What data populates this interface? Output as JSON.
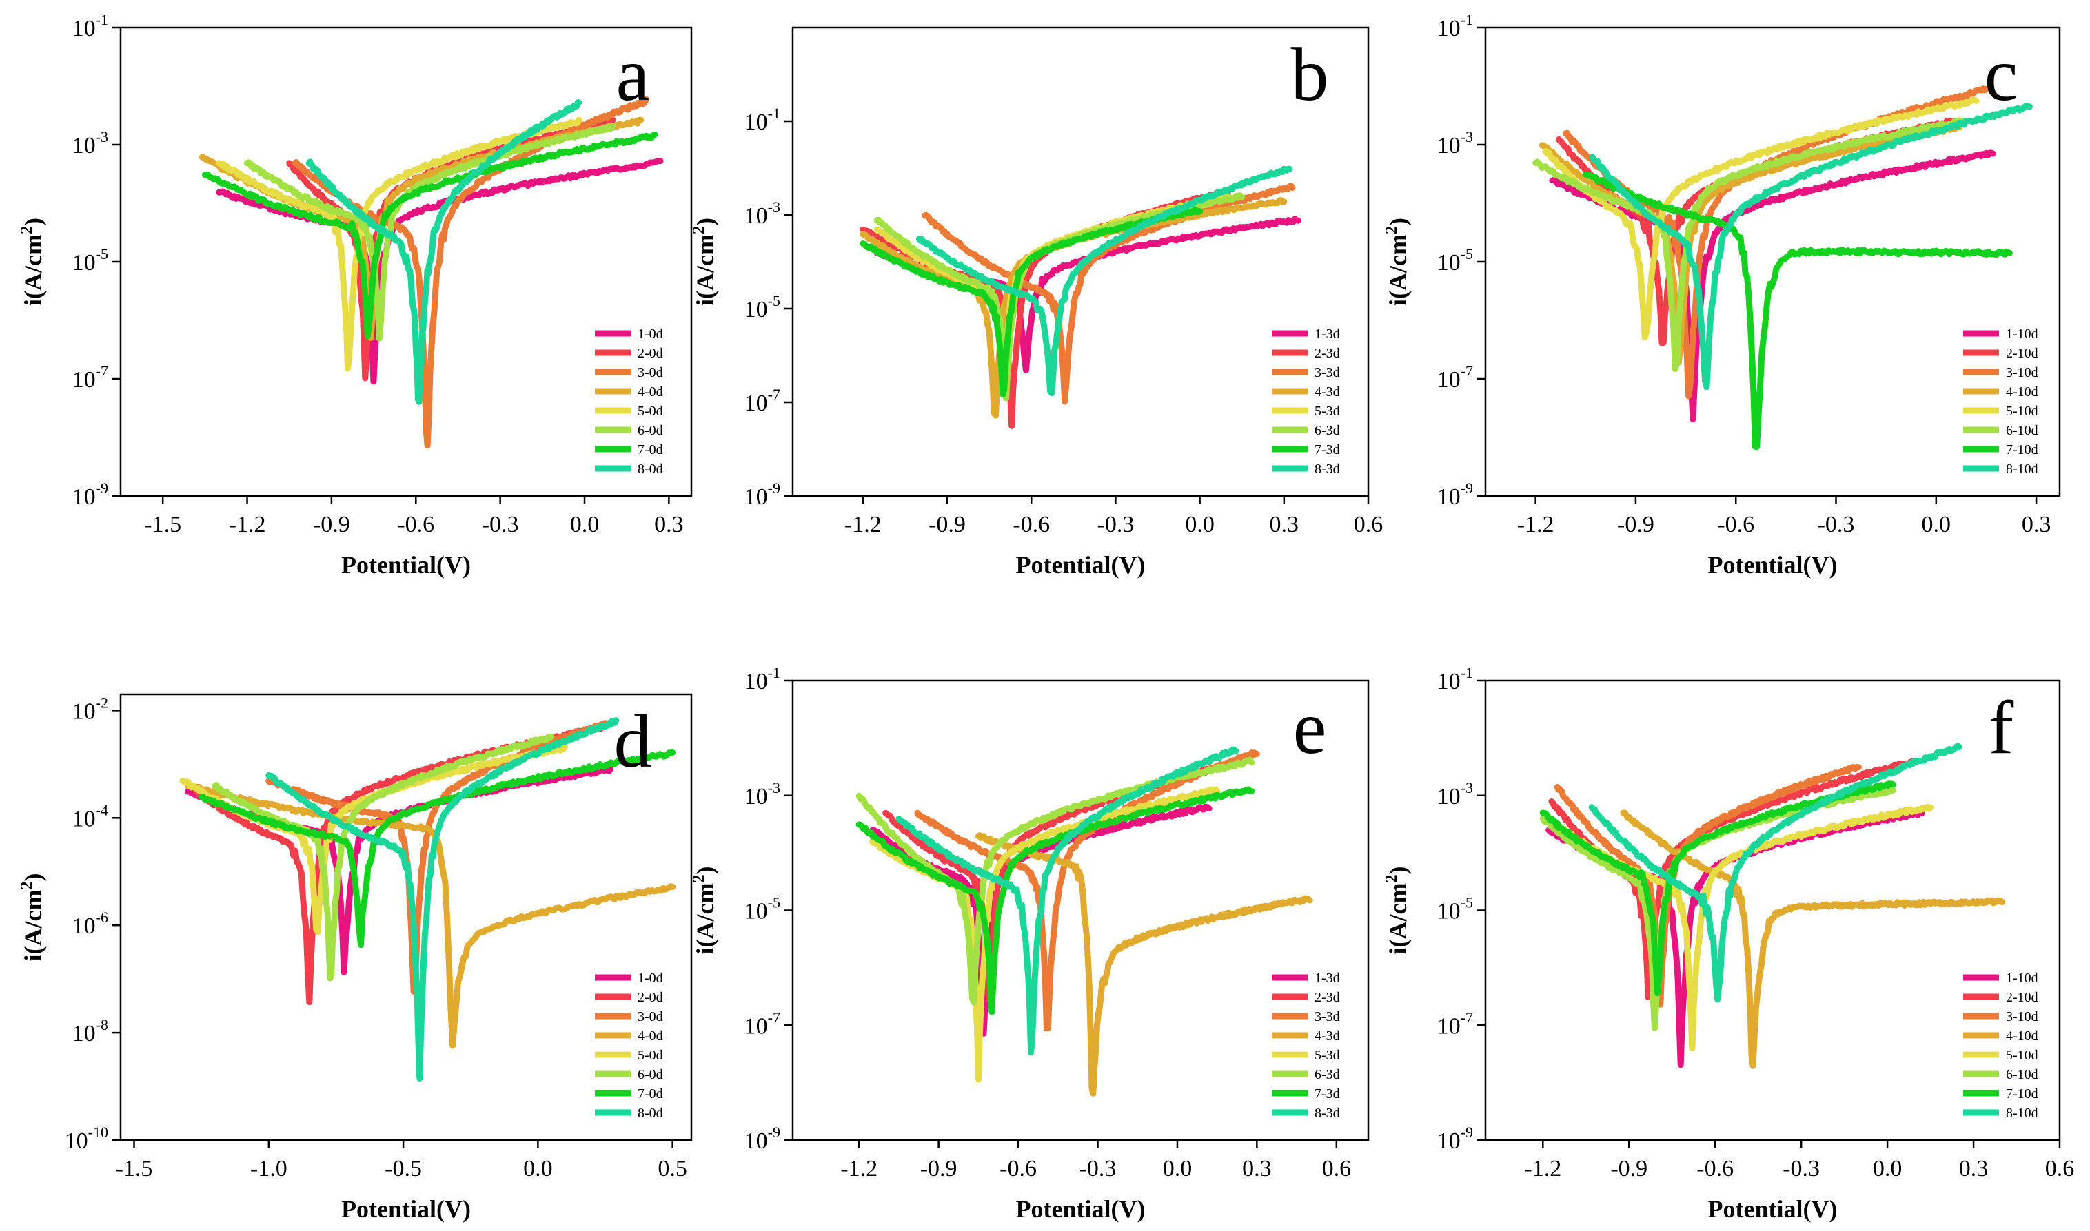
{
  "series_colors": [
    "#e8137f",
    "#f23d4b",
    "#ea7a35",
    "#e0aa2f",
    "#e6dc45",
    "#a3e044",
    "#13d11f",
    "#1ad69a"
  ],
  "chart_data": [
    {
      "type": "line",
      "panel": "a",
      "xlabel": "Potential(V)",
      "ylabel": "i(A/cm2)",
      "ylabel_base": "i(A/cm",
      "ylabel_sup": "2",
      "ylabel_end": ")",
      "xlim": [
        -1.65,
        0.38
      ],
      "ylim_exp": [
        -9,
        -1
      ],
      "x_ticks": [
        -1.5,
        -1.2,
        -0.9,
        -0.6,
        -0.3,
        0.0,
        0.3
      ],
      "x_tick_labels": [
        "-1.5",
        "-1.2",
        "-0.9",
        "-0.6",
        "-0.3",
        "0.0",
        "0.3"
      ],
      "y_tick_exps": [
        -9,
        -7,
        -5,
        -3,
        -1
      ],
      "y_tick_exp_labels": [
        "-9",
        "-7",
        "-5",
        "-3",
        "-1"
      ],
      "series": [
        {
          "name": "1-0d",
          "ecorr": -0.75,
          "ecorr_exp": -7.0,
          "start": -1.3,
          "start_exp": -3.8,
          "end": 0.27,
          "end_exp": -3.3,
          "cath_knee_exp": -4.4,
          "anod_knee_exp": -4.6
        },
        {
          "name": "2-0d",
          "ecorr": -0.78,
          "ecorr_exp": -7.0,
          "start": -1.05,
          "start_exp": -3.3,
          "end": 0.1,
          "end_exp": -2.6,
          "cath_knee_exp": -4.3,
          "anod_knee_exp": -4.3
        },
        {
          "name": "3-0d",
          "ecorr": -0.56,
          "ecorr_exp": -8.5,
          "start": -1.03,
          "start_exp": -3.3,
          "end": 0.22,
          "end_exp": -2.25,
          "cath_knee_exp": -4.5,
          "anod_knee_exp": -4.8
        },
        {
          "name": "4-0d",
          "ecorr": -0.76,
          "ecorr_exp": -6.3,
          "start": -1.36,
          "start_exp": -3.2,
          "end": 0.2,
          "end_exp": -2.6,
          "cath_knee_exp": -4.3,
          "anod_knee_exp": -4.2
        },
        {
          "name": "5-0d",
          "ecorr": -0.84,
          "ecorr_exp": -7.1,
          "start": -1.3,
          "start_exp": -3.3,
          "end": -0.02,
          "end_exp": -2.6,
          "cath_knee_exp": -4.2,
          "anod_knee_exp": -4.3
        },
        {
          "name": "6-0d",
          "ecorr": -0.73,
          "ecorr_exp": -6.4,
          "start": -1.2,
          "start_exp": -3.3,
          "end": 0.1,
          "end_exp": -2.7,
          "cath_knee_exp": -4.3,
          "anod_knee_exp": -4.3
        },
        {
          "name": "7-0d",
          "ecorr": -0.77,
          "ecorr_exp": -6.5,
          "start": -1.35,
          "start_exp": -3.5,
          "end": 0.25,
          "end_exp": -2.85,
          "cath_knee_exp": -4.4,
          "anod_knee_exp": -4.4
        },
        {
          "name": "8-0d",
          "ecorr": -0.59,
          "ecorr_exp": -7.7,
          "start": -0.98,
          "start_exp": -3.3,
          "end": -0.02,
          "end_exp": -2.3,
          "cath_knee_exp": -4.7,
          "anod_knee_exp": -5.0
        }
      ]
    },
    {
      "type": "line",
      "panel": "b",
      "xlabel": "Potential(V)",
      "ylabel": "i(A/cm2)",
      "ylabel_base": "i(A/cm",
      "ylabel_sup": "2",
      "ylabel_end": ")",
      "xlim": [
        -1.45,
        0.6
      ],
      "ylim_exp": [
        -9,
        1
      ],
      "x_ticks": [
        -1.2,
        -0.9,
        -0.6,
        -0.3,
        0.0,
        0.3,
        0.6
      ],
      "x_tick_labels": [
        "-1.2",
        "-0.9",
        "-0.6",
        "-0.3",
        "0.0",
        "0.3",
        "0.6"
      ],
      "y_tick_exps": [
        -9,
        -7,
        -5,
        -3,
        -1
      ],
      "y_tick_exp_labels": [
        "-9",
        "-7",
        "-5",
        "-3",
        "-1"
      ],
      "series": [
        {
          "name": "1-3d",
          "ecorr": -0.62,
          "ecorr_exp": -6.5,
          "start": -1.15,
          "start_exp": -3.8,
          "end": 0.35,
          "end_exp": -3.1,
          "cath_knee_exp": -4.5,
          "anod_knee_exp": -4.6
        },
        {
          "name": "2-3d",
          "ecorr": -0.67,
          "ecorr_exp": -7.5,
          "start": -1.2,
          "start_exp": -3.3,
          "end": 0.1,
          "end_exp": -2.5,
          "cath_knee_exp": -4.5,
          "anod_knee_exp": -4.5
        },
        {
          "name": "3-3d",
          "ecorr": -0.48,
          "ecorr_exp": -7.1,
          "start": -0.98,
          "start_exp": -3.0,
          "end": 0.33,
          "end_exp": -2.4,
          "cath_knee_exp": -4.7,
          "anod_knee_exp": -4.6
        },
        {
          "name": "4-3d",
          "ecorr": -0.73,
          "ecorr_exp": -7.6,
          "start": -1.2,
          "start_exp": -3.4,
          "end": 0.3,
          "end_exp": -2.7,
          "cath_knee_exp": -4.6,
          "anod_knee_exp": -4.4
        },
        {
          "name": "5-3d",
          "ecorr": -0.7,
          "ecorr_exp": -6.6,
          "start": -1.15,
          "start_exp": -3.3,
          "end": 0.1,
          "end_exp": -2.6,
          "cath_knee_exp": -4.6,
          "anod_knee_exp": -4.4
        },
        {
          "name": "6-3d",
          "ecorr": -0.69,
          "ecorr_exp": -6.9,
          "start": -1.15,
          "start_exp": -3.1,
          "end": 0.15,
          "end_exp": -2.6,
          "cath_knee_exp": -4.6,
          "anod_knee_exp": -4.4
        },
        {
          "name": "7-3d",
          "ecorr": -0.7,
          "ecorr_exp": -7.0,
          "start": -1.2,
          "start_exp": -3.6,
          "end": 0.0,
          "end_exp": -2.9,
          "cath_knee_exp": -4.7,
          "anod_knee_exp": -4.4
        },
        {
          "name": "8-3d",
          "ecorr": -0.53,
          "ecorr_exp": -7.1,
          "start": -1.0,
          "start_exp": -3.5,
          "end": 0.32,
          "end_exp": -2.0,
          "cath_knee_exp": -4.8,
          "anod_knee_exp": -5.0
        }
      ]
    },
    {
      "type": "line",
      "panel": "c",
      "xlabel": "Potential(V)",
      "ylabel": "i(A/cm2)",
      "ylabel_base": "i(A/cm",
      "ylabel_sup": "2",
      "ylabel_end": ")",
      "xlim": [
        -1.35,
        0.37
      ],
      "ylim_exp": [
        -9,
        -1
      ],
      "x_ticks": [
        -1.2,
        -0.9,
        -0.6,
        -0.3,
        0.0,
        0.3
      ],
      "x_tick_labels": [
        "-1.2",
        "-0.9",
        "-0.6",
        "-0.3",
        "0.0",
        "0.3"
      ],
      "y_tick_exps": [
        -9,
        -7,
        -5,
        -3,
        -1
      ],
      "y_tick_exp_labels": [
        "-9",
        "-7",
        "-5",
        "-3",
        "-1"
      ],
      "series": [
        {
          "name": "1-10d",
          "ecorr": -0.73,
          "ecorr_exp": -7.8,
          "start": -1.15,
          "start_exp": -3.6,
          "end": 0.17,
          "end_exp": -3.15,
          "cath_knee_exp": -4.4,
          "anod_knee_exp": -4.7
        },
        {
          "name": "2-10d",
          "ecorr": -0.82,
          "ecorr_exp": -6.6,
          "start": -1.13,
          "start_exp": -2.9,
          "end": 0.05,
          "end_exp": -2.6,
          "cath_knee_exp": -4.3,
          "anod_knee_exp": -4.4
        },
        {
          "name": "3-10d",
          "ecorr": -0.74,
          "ecorr_exp": -7.7,
          "start": -1.11,
          "start_exp": -2.8,
          "end": 0.15,
          "end_exp": -2.05,
          "cath_knee_exp": -4.3,
          "anod_knee_exp": -4.5
        },
        {
          "name": "4-10d",
          "ecorr": -0.77,
          "ecorr_exp": -6.9,
          "start": -1.18,
          "start_exp": -3.0,
          "end": 0.07,
          "end_exp": -2.7,
          "cath_knee_exp": -4.3,
          "anod_knee_exp": -4.3
        },
        {
          "name": "5-10d",
          "ecorr": -0.87,
          "ecorr_exp": -6.6,
          "start": -1.17,
          "start_exp": -3.1,
          "end": 0.12,
          "end_exp": -2.25,
          "cath_knee_exp": -4.3,
          "anod_knee_exp": -4.3
        },
        {
          "name": "6-10d",
          "ecorr": -0.78,
          "ecorr_exp": -7.1,
          "start": -1.2,
          "start_exp": -3.3,
          "end": 0.08,
          "end_exp": -2.6,
          "cath_knee_exp": -4.2,
          "anod_knee_exp": -4.2
        },
        {
          "name": "7-10d",
          "ecorr": -0.54,
          "ecorr_exp": -8.5,
          "start": -1.05,
          "start_exp": -3.5,
          "end": 0.22,
          "end_exp": -4.85,
          "cath_knee_exp": -4.4,
          "anod_knee_exp": -4.8
        },
        {
          "name": "8-10d",
          "ecorr": -0.69,
          "ecorr_exp": -7.4,
          "start": -1.03,
          "start_exp": -3.2,
          "end": 0.28,
          "end_exp": -2.35,
          "cath_knee_exp": -4.7,
          "anod_knee_exp": -4.8
        }
      ]
    },
    {
      "type": "line",
      "panel": "d",
      "xlabel": "Potential(V)",
      "ylabel": "i(A/cm2)",
      "ylabel_base": "i(A/cm",
      "ylabel_sup": "2",
      "ylabel_end": ")",
      "xlim": [
        -1.55,
        0.57
      ],
      "ylim_exp": [
        -10,
        -1.7
      ],
      "x_ticks": [
        -1.5,
        -1.0,
        -0.5,
        0.0,
        0.5
      ],
      "x_tick_labels": [
        "-1.5",
        "-1.0",
        "-0.5",
        "0.0",
        "0.5"
      ],
      "y_tick_exps": [
        -10,
        -8,
        -6,
        -4,
        -2
      ],
      "y_tick_exp_labels": [
        "-10",
        "-8",
        "-6",
        "-4",
        "-2"
      ],
      "series": [
        {
          "name": "1-0d",
          "ecorr": -0.72,
          "ecorr_exp": -7.0,
          "start": -1.3,
          "start_exp": -3.5,
          "end": 0.27,
          "end_exp": -3.1,
          "cath_knee_exp": -4.3,
          "anod_knee_exp": -4.5
        },
        {
          "name": "2-0d",
          "ecorr": -0.85,
          "ecorr_exp": -7.6,
          "start": -1.27,
          "start_exp": -3.5,
          "end": 0.25,
          "end_exp": -2.3,
          "cath_knee_exp": -4.5,
          "anod_knee_exp": -4.3
        },
        {
          "name": "3-0d",
          "ecorr": -0.46,
          "ecorr_exp": -7.6,
          "start": -1.0,
          "start_exp": -3.3,
          "end": 0.25,
          "end_exp": -2.25,
          "cath_knee_exp": -4.0,
          "anod_knee_exp": -4.3
        },
        {
          "name": "4-0d",
          "ecorr": -0.32,
          "ecorr_exp": -8.5,
          "start": -1.3,
          "start_exp": -3.4,
          "end": 0.5,
          "end_exp": -5.3,
          "cath_knee_exp": -4.2,
          "anod_knee_exp": -6.5
        },
        {
          "name": "5-0d",
          "ecorr": -0.82,
          "ecorr_exp": -6.4,
          "start": -1.32,
          "start_exp": -3.3,
          "end": 0.1,
          "end_exp": -2.7,
          "cath_knee_exp": -4.3,
          "anod_knee_exp": -4.3
        },
        {
          "name": "6-0d",
          "ecorr": -0.77,
          "ecorr_exp": -7.2,
          "start": -1.2,
          "start_exp": -3.4,
          "end": 0.05,
          "end_exp": -2.5,
          "cath_knee_exp": -4.3,
          "anod_knee_exp": -4.4
        },
        {
          "name": "7-0d",
          "ecorr": -0.66,
          "ecorr_exp": -6.6,
          "start": -1.25,
          "start_exp": -3.6,
          "end": 0.5,
          "end_exp": -2.8,
          "cath_knee_exp": -4.4,
          "anod_knee_exp": -4.5
        },
        {
          "name": "8-0d",
          "ecorr": -0.44,
          "ecorr_exp": -9.1,
          "start": -1.0,
          "start_exp": -3.2,
          "end": 0.29,
          "end_exp": -2.2,
          "cath_knee_exp": -4.6,
          "anod_knee_exp": -4.6
        }
      ]
    },
    {
      "type": "line",
      "panel": "e",
      "xlabel": "Potential(V)",
      "ylabel": "i(A/cm2)",
      "ylabel_base": "i(A/cm",
      "ylabel_sup": "2",
      "ylabel_end": ")",
      "xlim": [
        -1.45,
        0.72
      ],
      "ylim_exp": [
        -9,
        -1
      ],
      "x_ticks": [
        -1.2,
        -0.9,
        -0.6,
        -0.3,
        0.0,
        0.3,
        0.6
      ],
      "x_tick_labels": [
        "-1.2",
        "-0.9",
        "-0.6",
        "-0.3",
        "0.0",
        "0.3",
        "0.6"
      ],
      "y_tick_exps": [
        -9,
        -7,
        -5,
        -3,
        -1
      ],
      "y_tick_exp_labels": [
        "-9",
        "-7",
        "-5",
        "-3",
        "-1"
      ],
      "series": [
        {
          "name": "1-3d",
          "ecorr": -0.73,
          "ecorr_exp": -7.2,
          "start": -1.15,
          "start_exp": -3.6,
          "end": 0.12,
          "end_exp": -3.2,
          "cath_knee_exp": -4.5,
          "anod_knee_exp": -4.6
        },
        {
          "name": "2-3d",
          "ecorr": -0.71,
          "ecorr_exp": -6.5,
          "start": -1.1,
          "start_exp": -3.3,
          "end": 0.25,
          "end_exp": -2.4,
          "cath_knee_exp": -4.4,
          "anod_knee_exp": -4.4
        },
        {
          "name": "3-3d",
          "ecorr": -0.49,
          "ecorr_exp": -7.4,
          "start": -0.98,
          "start_exp": -3.3,
          "end": 0.3,
          "end_exp": -2.25,
          "cath_knee_exp": -4.3,
          "anod_knee_exp": -4.6
        },
        {
          "name": "4-3d",
          "ecorr": -0.32,
          "ecorr_exp": -8.5,
          "start": -0.75,
          "start_exp": -3.7,
          "end": 0.5,
          "end_exp": -4.8,
          "cath_knee_exp": -4.2,
          "anod_knee_exp": -6.0
        },
        {
          "name": "5-3d",
          "ecorr": -0.75,
          "ecorr_exp": -7.9,
          "start": -1.15,
          "start_exp": -3.8,
          "end": 0.15,
          "end_exp": -2.9,
          "cath_knee_exp": -4.6,
          "anod_knee_exp": -4.5
        },
        {
          "name": "6-3d",
          "ecorr": -0.77,
          "ecorr_exp": -7.0,
          "start": -1.2,
          "start_exp": -3.0,
          "end": 0.28,
          "end_exp": -2.4,
          "cath_knee_exp": -4.6,
          "anod_knee_exp": -4.3
        },
        {
          "name": "7-3d",
          "ecorr": -0.7,
          "ecorr_exp": -6.8,
          "start": -1.2,
          "start_exp": -3.5,
          "end": 0.28,
          "end_exp": -2.9,
          "cath_knee_exp": -4.7,
          "anod_knee_exp": -4.5
        },
        {
          "name": "8-3d",
          "ecorr": -0.55,
          "ecorr_exp": -7.7,
          "start": -1.05,
          "start_exp": -3.4,
          "end": 0.22,
          "end_exp": -2.2,
          "cath_knee_exp": -4.6,
          "anod_knee_exp": -4.7
        }
      ]
    },
    {
      "type": "line",
      "panel": "f",
      "xlabel": "Potential(V)",
      "ylabel": "i(A/cm2)",
      "ylabel_base": "i(A/cm",
      "ylabel_sup": "2",
      "ylabel_end": ")",
      "xlim": [
        -1.4,
        0.6
      ],
      "ylim_exp": [
        -9,
        -1
      ],
      "x_ticks": [
        -1.2,
        -0.9,
        -0.6,
        -0.3,
        0.0,
        0.3,
        0.6
      ],
      "x_tick_labels": [
        "-1.2",
        "-0.9",
        "-0.6",
        "-0.3",
        "0.0",
        "0.3",
        "0.6"
      ],
      "y_tick_exps": [
        -9,
        -7,
        -5,
        -3,
        -1
      ],
      "y_tick_exp_labels": [
        "-9",
        "-7",
        "-5",
        "-3",
        "-1"
      ],
      "series": [
        {
          "name": "1-10d",
          "ecorr": -0.72,
          "ecorr_exp": -7.6,
          "start": -1.18,
          "start_exp": -3.6,
          "end": 0.12,
          "end_exp": -3.3,
          "cath_knee_exp": -4.5,
          "anod_knee_exp": -4.7
        },
        {
          "name": "2-10d",
          "ecorr": -0.83,
          "ecorr_exp": -6.8,
          "start": -1.17,
          "start_exp": -3.1,
          "end": 0.1,
          "end_exp": -2.4,
          "cath_knee_exp": -4.5,
          "anod_knee_exp": -4.5
        },
        {
          "name": "3-10d",
          "ecorr": -0.79,
          "ecorr_exp": -6.6,
          "start": -1.15,
          "start_exp": -2.85,
          "end": -0.1,
          "end_exp": -2.5,
          "cath_knee_exp": -4.4,
          "anod_knee_exp": -4.4
        },
        {
          "name": "4-10d",
          "ecorr": -0.47,
          "ecorr_exp": -8.0,
          "start": -0.92,
          "start_exp": -3.3,
          "end": 0.4,
          "end_exp": -4.85,
          "cath_knee_exp": -4.5,
          "anod_knee_exp": -5.0
        },
        {
          "name": "5-10d",
          "ecorr": -0.68,
          "ecorr_exp": -7.3,
          "start": -1.15,
          "start_exp": -3.5,
          "end": 0.15,
          "end_exp": -3.2,
          "cath_knee_exp": -4.6,
          "anod_knee_exp": -4.6
        },
        {
          "name": "6-10d",
          "ecorr": -0.81,
          "ecorr_exp": -7.2,
          "start": -1.2,
          "start_exp": -3.4,
          "end": 0.02,
          "end_exp": -2.9,
          "cath_knee_exp": -4.5,
          "anod_knee_exp": -4.4
        },
        {
          "name": "7-10d",
          "ecorr": -0.8,
          "ecorr_exp": -6.6,
          "start": -1.2,
          "start_exp": -3.3,
          "end": 0.02,
          "end_exp": -2.8,
          "cath_knee_exp": -4.4,
          "anod_knee_exp": -4.4
        },
        {
          "name": "8-10d",
          "ecorr": -0.59,
          "ecorr_exp": -6.8,
          "start": -1.03,
          "start_exp": -3.2,
          "end": 0.25,
          "end_exp": -2.15,
          "cath_knee_exp": -4.8,
          "anod_knee_exp": -4.8
        }
      ]
    }
  ]
}
